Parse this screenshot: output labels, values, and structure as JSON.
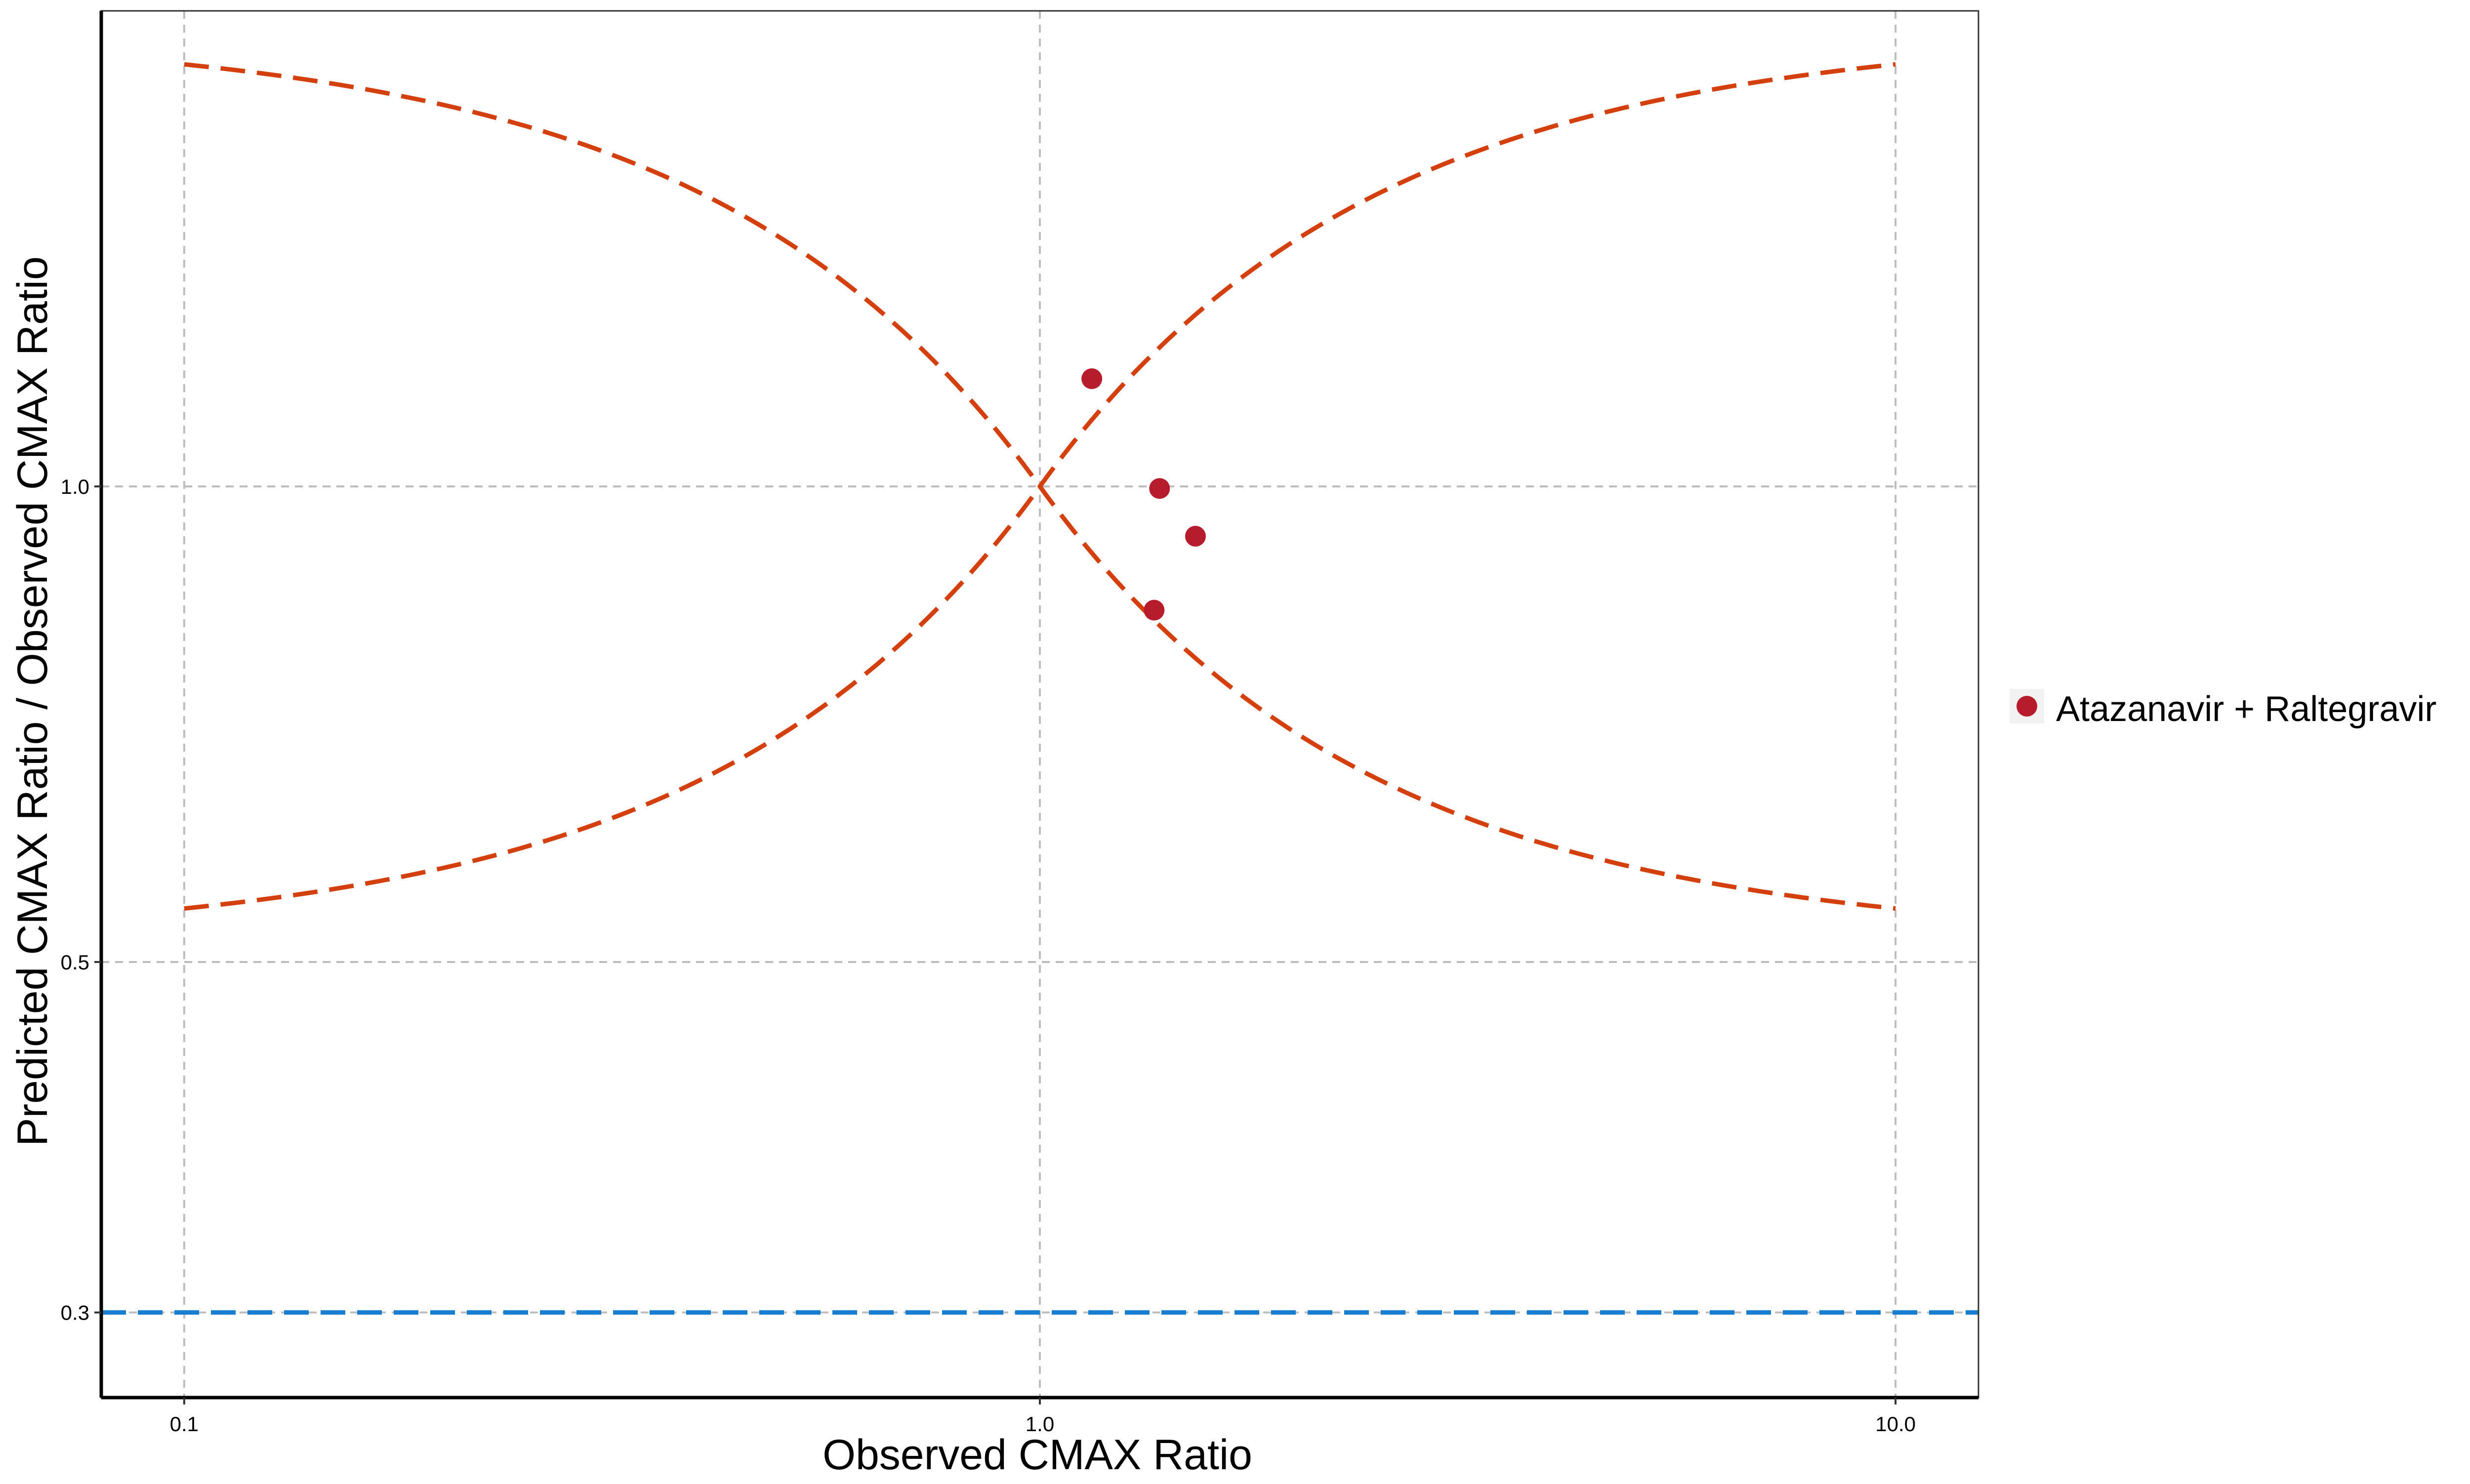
{
  "chart_data": {
    "type": "scatter",
    "xlabel": "Observed CMAX Ratio",
    "ylabel": "Predicted CMAX Ratio / Observed CMAX Ratio",
    "x_scale": "log",
    "y_scale": "log",
    "xlim": [
      0.08,
      12.5
    ],
    "ylim": [
      0.265,
      2.0
    ],
    "x_ticks": [
      0.1,
      1.0,
      10.0
    ],
    "x_tick_labels": [
      "0.1",
      "1.0",
      "10.0"
    ],
    "y_ticks": [
      0.3,
      0.5,
      1.0
    ],
    "y_tick_labels": [
      "0.3",
      "0.5",
      "1.0"
    ],
    "grid": true,
    "legend_position": "right",
    "series": [
      {
        "name": "Atazanavir + Raltegravir",
        "color": "#B71C2C",
        "x": [
          1.15,
          1.38,
          1.52,
          1.36
        ],
        "y": [
          1.17,
          0.997,
          0.93,
          0.835
        ]
      }
    ],
    "guide_lines": [
      {
        "kind": "dashed-curve",
        "color": "#D43F0E",
        "description_points": {
          "x": [
            0.1,
            1.0,
            10.0
          ],
          "upper_y": [
            1.85,
            1.0,
            1.85
          ],
          "lower_y": [
            0.54,
            1.0,
            0.54
          ]
        }
      },
      {
        "kind": "dashed-hline",
        "color": "#1A7ED0",
        "y": 0.3
      }
    ]
  }
}
